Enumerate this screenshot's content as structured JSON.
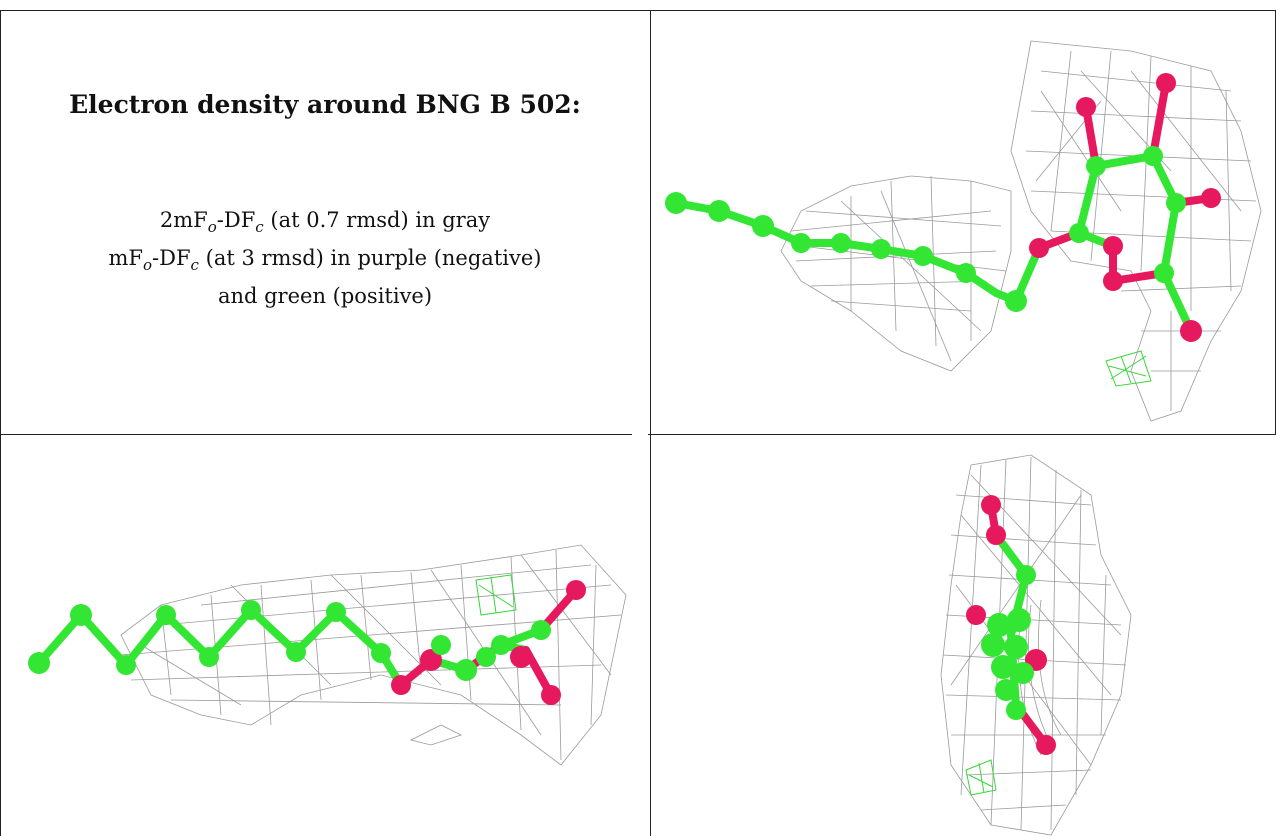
{
  "caption": {
    "title": "Electron density around BNG B 502:",
    "line1_pre": "2mF",
    "line1_sub1": "o",
    "line1_mid": "-DF",
    "line1_sub2": "c",
    "line1_post": " (at 0.7 rmsd) in gray",
    "line2_pre": "mF",
    "line2_sub1": "o",
    "line2_mid": "-DF",
    "line2_sub2": "c",
    "line2_post": " (at 3 rmsd) in purple (negative)",
    "line3": "and green (positive)"
  },
  "colors": {
    "carbon": "#33e633",
    "oxygen": "#e6195f",
    "mesh_gray": "#9a9a9a",
    "mesh_green": "#3ad63a",
    "rule": "#222222"
  },
  "panels": [
    {
      "name": "view-1",
      "icon": "ligand-density-render-top-view"
    },
    {
      "name": "view-2",
      "icon": "ligand-density-render-side-view"
    },
    {
      "name": "view-3",
      "icon": "ligand-density-render-end-view"
    }
  ]
}
